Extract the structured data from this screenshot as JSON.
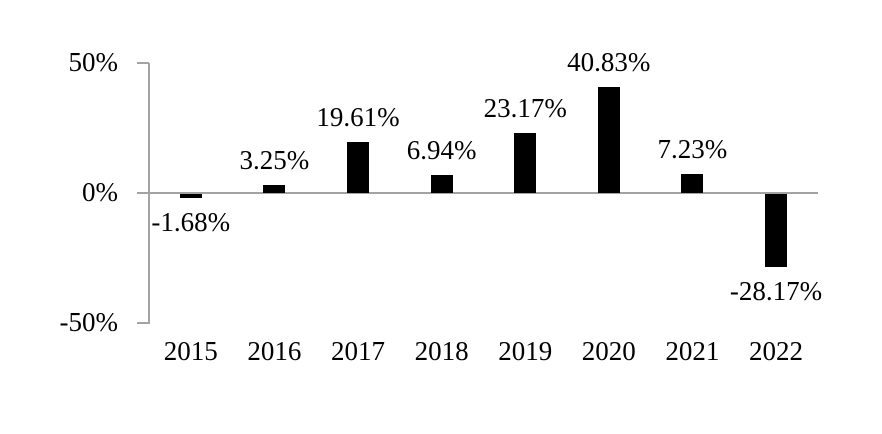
{
  "chart_data": {
    "type": "bar",
    "title": "",
    "xlabel": "",
    "ylabel": "",
    "categories": [
      "2015",
      "2016",
      "2017",
      "2018",
      "2019",
      "2020",
      "2021",
      "2022"
    ],
    "values": [
      -1.68,
      3.25,
      19.61,
      6.94,
      23.17,
      40.83,
      7.23,
      -28.17
    ],
    "value_labels": [
      "-1.68%",
      "3.25%",
      "19.61%",
      "6.94%",
      "23.17%",
      "40.83%",
      "7.23%",
      "-28.17%"
    ],
    "ylim": [
      -50,
      50
    ],
    "yticks": [
      {
        "value": 50,
        "label": "50%"
      },
      {
        "value": 0,
        "label": "0%"
      },
      {
        "value": -50,
        "label": "-50%"
      }
    ],
    "grid": false,
    "legend": "none",
    "colors": {
      "bar": "#000000",
      "axis": "#a3a3a3",
      "text": "#000000",
      "background": "#ffffff"
    }
  }
}
